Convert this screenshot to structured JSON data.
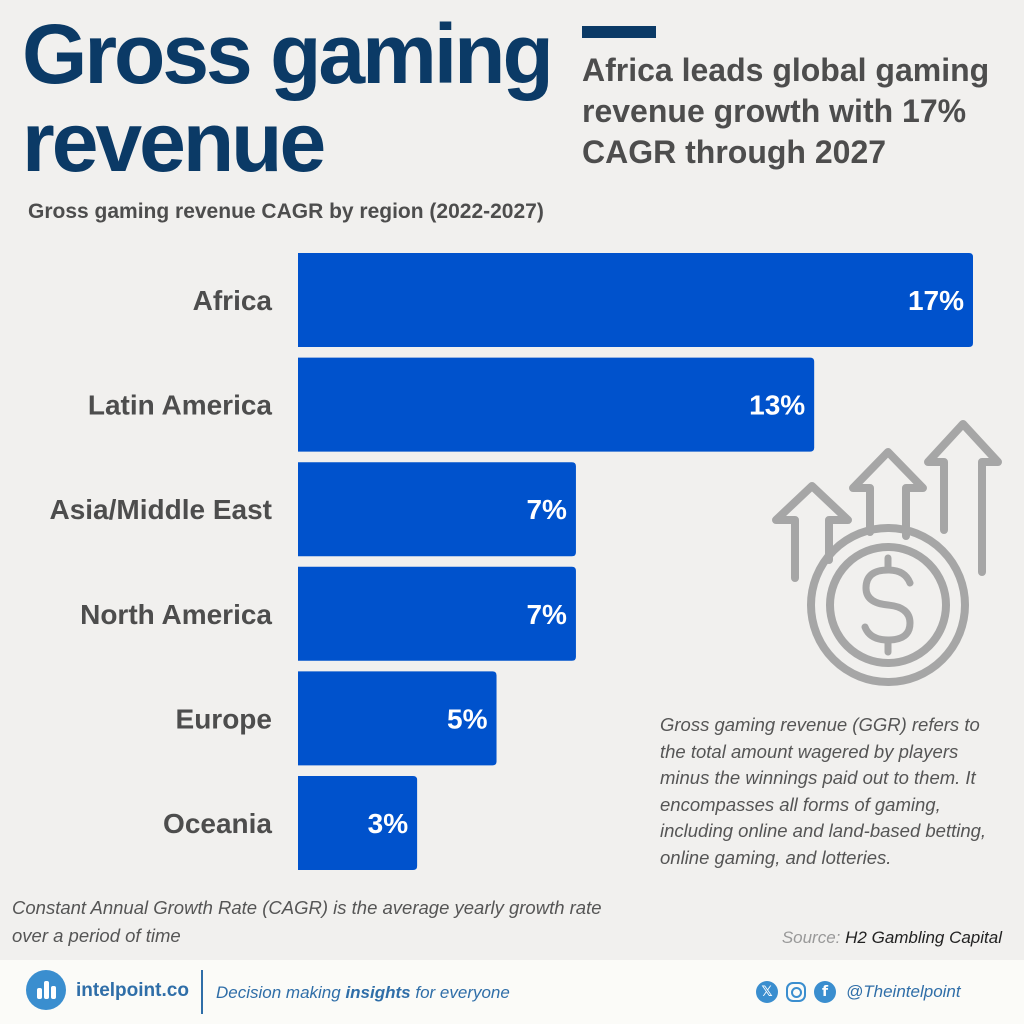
{
  "title": "Gross gaming revenue",
  "headline": "Africa leads global gaming revenue growth with 17% CAGR through 2027",
  "chart_data": {
    "type": "bar",
    "orientation": "horizontal",
    "title": "Gross gaming revenue CAGR by region (2022-2027)",
    "categories": [
      "Africa",
      "Latin America",
      "Asia/Middle East",
      "North America",
      "Europe",
      "Oceania"
    ],
    "values": [
      17,
      13,
      7,
      7,
      5,
      3
    ],
    "data_labels": [
      "17%",
      "13%",
      "7%",
      "7%",
      "5%",
      "3%"
    ],
    "unit": "%",
    "xlim": [
      0,
      17
    ],
    "grid": false,
    "bar_color": "#0052cc"
  },
  "ggr_note": "Gross gaming revenue (GGR) refers to the total amount wagered by players minus the winnings paid out to them. It encompasses all forms of gaming, including online and land-based betting, online gaming, and lotteries.",
  "cagr_note": "Constant Annual Growth Rate (CAGR) is the average yearly growth rate over a period of time",
  "source": {
    "label": "Source:",
    "name": "H2 Gambling Capital"
  },
  "footer": {
    "brand": "intelpoint.co",
    "tagline_pre": "Decision making ",
    "tagline_bold": "insights",
    "tagline_post": " for everyone",
    "handle": "@Theintelpoint",
    "social_icons": [
      "x-icon",
      "instagram-icon",
      "facebook-icon"
    ]
  },
  "colors": {
    "title": "#0b3a66",
    "bar": "#0052cc",
    "brand": "#2f6ea8",
    "illustration": "#a6a6a6"
  },
  "illustration_icon": "growth-arrows-dollar-coin-icon"
}
